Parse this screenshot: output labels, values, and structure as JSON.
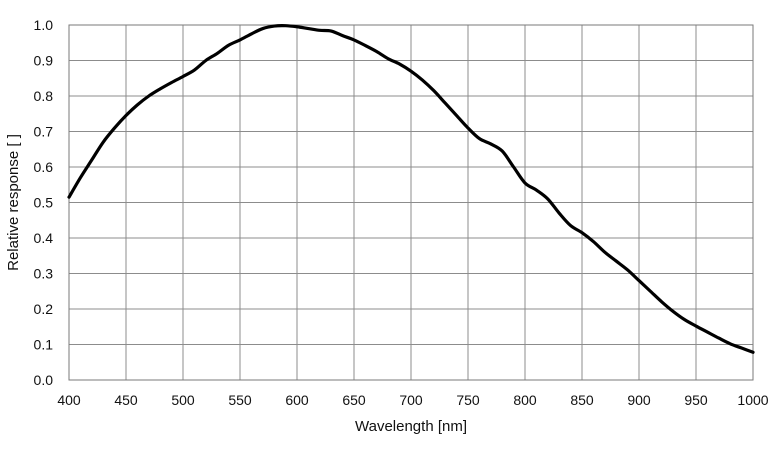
{
  "chart_data": {
    "type": "line",
    "title": "",
    "xlabel": "Wavelength [nm]",
    "ylabel": "Relative response [ ]",
    "xlim": [
      400,
      1000
    ],
    "ylim": [
      0.0,
      1.0
    ],
    "grid": true,
    "x_ticks": [
      400,
      450,
      500,
      550,
      600,
      650,
      700,
      750,
      800,
      850,
      900,
      950,
      1000
    ],
    "x_tick_labels": [
      "400",
      "450",
      "500",
      "550",
      "600",
      "650",
      "700",
      "750",
      "800",
      "850",
      "900",
      "950",
      "1000"
    ],
    "y_ticks": [
      0.0,
      0.1,
      0.2,
      0.3,
      0.4,
      0.5,
      0.6,
      0.7,
      0.8,
      0.9,
      1.0
    ],
    "y_tick_labels": [
      "0.0",
      "0.1",
      "0.2",
      "0.3",
      "0.4",
      "0.5",
      "0.6",
      "0.7",
      "0.8",
      "0.9",
      "1.0"
    ],
    "line_color": "#000000",
    "series": [
      {
        "x": [
          400,
          410,
          420,
          430,
          440,
          450,
          460,
          470,
          480,
          490,
          500,
          510,
          520,
          530,
          540,
          550,
          560,
          570,
          580,
          590,
          600,
          610,
          620,
          630,
          640,
          650,
          660,
          670,
          680,
          690,
          700,
          710,
          720,
          730,
          740,
          750,
          760,
          770,
          780,
          790,
          800,
          810,
          820,
          830,
          840,
          850,
          860,
          870,
          880,
          890,
          900,
          910,
          920,
          930,
          940,
          950,
          960,
          970,
          980,
          990,
          1000
        ],
        "y": [
          0.515,
          0.57,
          0.62,
          0.67,
          0.71,
          0.745,
          0.775,
          0.8,
          0.82,
          0.838,
          0.855,
          0.873,
          0.9,
          0.92,
          0.943,
          0.958,
          0.975,
          0.99,
          0.997,
          0.998,
          0.995,
          0.99,
          0.985,
          0.983,
          0.97,
          0.958,
          0.942,
          0.925,
          0.905,
          0.89,
          0.87,
          0.845,
          0.815,
          0.78,
          0.745,
          0.71,
          0.68,
          0.665,
          0.645,
          0.6,
          0.555,
          0.535,
          0.51,
          0.47,
          0.435,
          0.415,
          0.39,
          0.36,
          0.335,
          0.31,
          0.28,
          0.25,
          0.22,
          0.193,
          0.17,
          0.152,
          0.135,
          0.118,
          0.102,
          0.09,
          0.078
        ]
      }
    ]
  }
}
